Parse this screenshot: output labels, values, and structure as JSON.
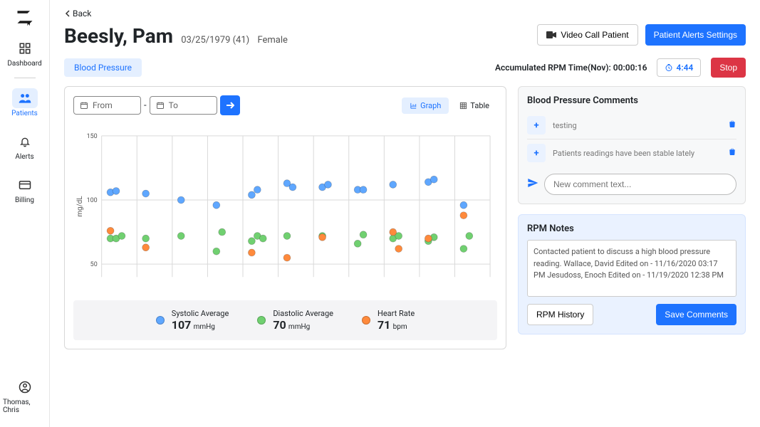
{
  "sidebar": {
    "items": [
      {
        "label": "Dashboard"
      },
      {
        "label": "Patients"
      },
      {
        "label": "Alerts"
      },
      {
        "label": "Billing"
      }
    ],
    "user": "Thomas, Chris"
  },
  "back_label": "Back",
  "patient": {
    "name": "Beesly, Pam",
    "dob": "03/25/1979 (41)",
    "sex": "Female"
  },
  "header": {
    "video_call": "Video Call Patient",
    "alerts_settings": "Patient Alerts Settings"
  },
  "metric_tag": "Blood Pressure",
  "rpm": {
    "accum_label": "Accumulated RPM Time(Nov): 00:00:16",
    "timer": "4:44",
    "stop": "Stop"
  },
  "date_range": {
    "from": "From",
    "to": "To"
  },
  "view": {
    "graph": "Graph",
    "table": "Table"
  },
  "chart": {
    "type": "scatter",
    "y_label": "mg/dL",
    "ylim": [
      40,
      150
    ],
    "yticks": [
      50,
      100,
      150
    ],
    "background": "#ffffff",
    "grid_color": "#d9d9d9",
    "colors": {
      "systolic": "#5fa7ff",
      "diastolic": "#70d070",
      "heart_rate": "#ff8a3c"
    },
    "marker_radius": 5,
    "groups": 11,
    "series": {
      "systolic": [
        [
          106,
          107
        ],
        [
          105
        ],
        [
          100
        ],
        [
          96
        ],
        [
          104,
          108
        ],
        [
          113,
          110
        ],
        [
          110,
          112
        ],
        [
          108,
          108
        ],
        [
          112
        ],
        [
          114,
          116
        ],
        [
          96
        ]
      ],
      "diastolic": [
        [
          70,
          70,
          72
        ],
        [
          70
        ],
        [
          72
        ],
        [
          60,
          75
        ],
        [
          68,
          72,
          70
        ],
        [
          72
        ],
        [
          72
        ],
        [
          66,
          73
        ],
        [
          70,
          72
        ],
        [
          68,
          71
        ],
        [
          62,
          72
        ]
      ],
      "heart_rate": [
        [
          76
        ],
        [
          63
        ],
        [],
        [],
        [
          59
        ],
        [
          55
        ],
        [
          71
        ],
        [],
        [
          75,
          62
        ],
        [
          70
        ],
        [
          88
        ]
      ]
    }
  },
  "averages": {
    "systolic": {
      "label": "Systolic Average",
      "value": "107",
      "unit": "mmHg"
    },
    "diastolic": {
      "label": "Diastolic Average",
      "value": "70",
      "unit": "mmHg"
    },
    "heart_rate": {
      "label": "Heart Rate",
      "value": "71",
      "unit": "bpm"
    }
  },
  "comments_panel": {
    "title": "Blood Pressure Comments",
    "items": [
      {
        "text": "testing"
      },
      {
        "text": "Patients readings have been stable lately"
      }
    ],
    "placeholder": "New comment text..."
  },
  "notes_panel": {
    "title": "RPM Notes",
    "text": "Contacted patient to discuss a high blood pressure reading.\nWallace, David Edited on - 11/16/2020 03:17 PM\n\nJesudoss, Enoch Edited on - 11/19/2020 12:38 PM",
    "history": "RPM History",
    "save": "Save Comments"
  }
}
